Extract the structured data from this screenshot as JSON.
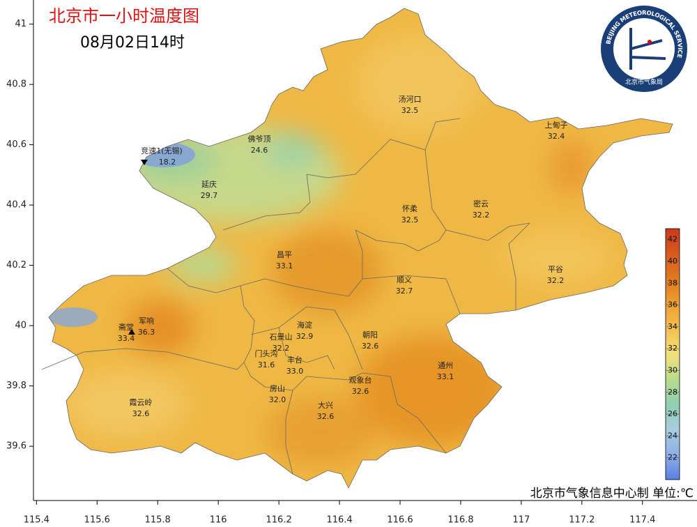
{
  "map": {
    "title": "北京市一小时温度图",
    "subtitle": "08月02日14时",
    "xlim": [
      115.39,
      117.58
    ],
    "ylim": [
      39.42,
      41.08
    ],
    "xticks": [
      115.4,
      115.6,
      115.8,
      116,
      116.2,
      116.4,
      116.6,
      116.8,
      117,
      117.2,
      117.4
    ],
    "yticks": [
      39.6,
      39.8,
      40,
      40.2,
      40.4,
      40.6,
      40.8,
      41
    ],
    "stations": [
      {
        "name": "汤河口",
        "value": "32.5"
      },
      {
        "name": "上甸子",
        "value": "32.4"
      },
      {
        "name": "佛爷顶",
        "value": "24.6"
      },
      {
        "name": "竞速1(无锡)",
        "value": "18.2"
      },
      {
        "name": "延庆",
        "value": "29.7"
      },
      {
        "name": "怀柔",
        "value": "32.5"
      },
      {
        "name": "密云",
        "value": "32.2"
      },
      {
        "name": "昌平",
        "value": "33.1"
      },
      {
        "name": "平谷",
        "value": "32.2"
      },
      {
        "name": "顺义",
        "value": "32.7"
      },
      {
        "name": "军响",
        "value": "36.3"
      },
      {
        "name": "斋堂",
        "value": "33.4"
      },
      {
        "name": "海淀",
        "value": "32.9"
      },
      {
        "name": "朝阳",
        "value": "32.6"
      },
      {
        "name": "石景山",
        "value": "32.2"
      },
      {
        "name": "门头沟",
        "value": "31.6"
      },
      {
        "name": "丰台",
        "value": "33.0"
      },
      {
        "name": "通州",
        "value": "33.1"
      },
      {
        "name": "观象台",
        "value": "32.6"
      },
      {
        "name": "房山",
        "value": "32.0"
      },
      {
        "name": "大兴",
        "value": "32.6"
      },
      {
        "name": "霞云岭",
        "value": "32.6"
      }
    ],
    "colorbar": {
      "lim": [
        20,
        43
      ],
      "ticks": [
        22,
        24,
        26,
        28,
        30,
        32,
        34,
        36,
        38,
        40,
        42
      ],
      "colors": [
        "#5a7fe0",
        "#8fb0e8",
        "#a9cde0",
        "#8fcfb0",
        "#b9dc8c",
        "#f4e07a",
        "#f2c050",
        "#eea030",
        "#e07a20",
        "#d85a20",
        "#cc3a1a"
      ]
    },
    "logo": {
      "ring_text": "BEIJING METEOROLOGICAL SERVICE",
      "inner_text": "北京市气象局"
    },
    "footer": "北京市气象信息中心制 单位:℃"
  }
}
